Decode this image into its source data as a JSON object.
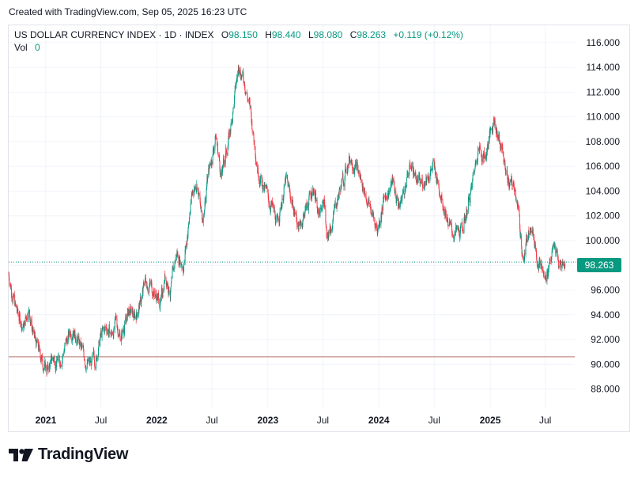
{
  "header": {
    "created_text": "Created with TradingView.com, Sep 05, 2025 16:23 UTC"
  },
  "legend": {
    "symbol": "US DOLLAR CURRENCY INDEX · 1D · INDEX",
    "o_label": "O",
    "o_value": "98.150",
    "h_label": "H",
    "h_value": "98.440",
    "l_label": "L",
    "l_value": "98.080",
    "c_label": "C",
    "c_value": "98.263",
    "change": "+0.119 (+0.12%)",
    "vol_label": "Vol",
    "vol_value": "0"
  },
  "price_label": "98.263",
  "brand": {
    "name": "TradingView"
  },
  "colors": {
    "up": "#089981",
    "down": "#f23645",
    "grid": "#f0f3fa",
    "axis_text": "#131722",
    "ref_line": "#b2746e"
  },
  "chart_data": {
    "type": "candlestick",
    "title": "US DOLLAR CURRENCY INDEX · 1D · INDEX",
    "x_ticks": [
      {
        "label": "2021",
        "date": "2021-01-01",
        "bold": true
      },
      {
        "label": "Jul",
        "date": "2021-07-01",
        "bold": false
      },
      {
        "label": "2022",
        "date": "2022-01-01",
        "bold": true
      },
      {
        "label": "Jul",
        "date": "2022-07-01",
        "bold": false
      },
      {
        "label": "2023",
        "date": "2023-01-01",
        "bold": true
      },
      {
        "label": "Jul",
        "date": "2023-07-01",
        "bold": false
      },
      {
        "label": "2024",
        "date": "2024-01-01",
        "bold": true
      },
      {
        "label": "Jul",
        "date": "2024-07-01",
        "bold": false
      },
      {
        "label": "2025",
        "date": "2025-01-01",
        "bold": true
      },
      {
        "label": "Jul",
        "date": "2025-07-01",
        "bold": false
      }
    ],
    "y_ticks": [
      "88.000",
      "90.000",
      "92.000",
      "94.000",
      "96.000",
      "98.000",
      "100.000",
      "102.000",
      "104.000",
      "106.000",
      "108.000",
      "110.000",
      "112.000",
      "114.000",
      "116.000"
    ],
    "y_range": [
      86.5,
      117.4
    ],
    "x_range": [
      "2020-09-01",
      "2025-10-06"
    ],
    "last_price": 98.263,
    "ref_line": 90.6,
    "grid": true,
    "close_path": [
      [
        "2020-09-01",
        97.3
      ],
      [
        "2020-09-25",
        94.4
      ],
      [
        "2020-10-20",
        93.0
      ],
      [
        "2020-11-05",
        94.6
      ],
      [
        "2020-11-25",
        92.0
      ],
      [
        "2020-12-20",
        90.3
      ],
      [
        "2021-01-06",
        89.5
      ],
      [
        "2021-01-25",
        90.5
      ],
      [
        "2021-02-15",
        90.2
      ],
      [
        "2021-03-10",
        91.8
      ],
      [
        "2021-03-31",
        93.1
      ],
      [
        "2021-04-15",
        92.0
      ],
      [
        "2021-05-10",
        90.4
      ],
      [
        "2021-05-25",
        89.9
      ],
      [
        "2021-06-15",
        90.5
      ],
      [
        "2021-06-30",
        92.2
      ],
      [
        "2021-07-20",
        93.0
      ],
      [
        "2021-08-05",
        92.3
      ],
      [
        "2021-08-20",
        93.4
      ],
      [
        "2021-09-05",
        92.2
      ],
      [
        "2021-09-30",
        94.3
      ],
      [
        "2021-10-20",
        93.8
      ],
      [
        "2021-11-12",
        95.2
      ],
      [
        "2021-11-24",
        96.8
      ],
      [
        "2021-12-15",
        96.3
      ],
      [
        "2022-01-14",
        94.9
      ],
      [
        "2022-01-28",
        97.3
      ],
      [
        "2022-02-15",
        95.9
      ],
      [
        "2022-03-07",
        99.0
      ],
      [
        "2022-03-30",
        98.0
      ],
      [
        "2022-04-28",
        103.9
      ],
      [
        "2022-05-13",
        104.9
      ],
      [
        "2022-05-30",
        101.4
      ],
      [
        "2022-06-15",
        104.8
      ],
      [
        "2022-07-14",
        108.5
      ],
      [
        "2022-08-01",
        105.2
      ],
      [
        "2022-08-30",
        108.8
      ],
      [
        "2022-09-28",
        114.3
      ],
      [
        "2022-10-20",
        112.5
      ],
      [
        "2022-11-04",
        110.5
      ],
      [
        "2022-11-30",
        105.8
      ],
      [
        "2022-12-20",
        104.2
      ],
      [
        "2023-01-10",
        103.0
      ],
      [
        "2023-02-01",
        101.3
      ],
      [
        "2023-03-01",
        104.9
      ],
      [
        "2023-03-31",
        102.3
      ],
      [
        "2023-04-14",
        101.0
      ],
      [
        "2023-05-31",
        104.4
      ],
      [
        "2023-06-15",
        102.0
      ],
      [
        "2023-07-06",
        103.4
      ],
      [
        "2023-07-14",
        99.7
      ],
      [
        "2023-08-15",
        103.2
      ],
      [
        "2023-09-05",
        104.9
      ],
      [
        "2023-09-28",
        106.8
      ],
      [
        "2023-10-15",
        106.3
      ],
      [
        "2023-11-15",
        104.0
      ],
      [
        "2023-12-27",
        100.9
      ],
      [
        "2024-01-20",
        103.5
      ],
      [
        "2024-02-15",
        104.7
      ],
      [
        "2024-03-08",
        102.7
      ],
      [
        "2024-04-16",
        106.2
      ],
      [
        "2024-05-15",
        104.4
      ],
      [
        "2024-06-26",
        106.0
      ],
      [
        "2024-07-20",
        104.2
      ],
      [
        "2024-08-27",
        100.6
      ],
      [
        "2024-09-27",
        100.5
      ],
      [
        "2024-10-31",
        104.1
      ],
      [
        "2024-11-22",
        107.6
      ],
      [
        "2024-12-15",
        106.7
      ],
      [
        "2025-01-13",
        109.9
      ],
      [
        "2025-02-05",
        107.7
      ],
      [
        "2025-03-04",
        104.5
      ],
      [
        "2025-03-25",
        104.2
      ],
      [
        "2025-04-21",
        98.3
      ],
      [
        "2025-05-12",
        101.8
      ],
      [
        "2025-06-05",
        98.8
      ],
      [
        "2025-07-01",
        96.7
      ],
      [
        "2025-07-15",
        98.6
      ],
      [
        "2025-08-01",
        99.5
      ],
      [
        "2025-08-15",
        98.0
      ],
      [
        "2025-09-05",
        98.26
      ]
    ]
  }
}
